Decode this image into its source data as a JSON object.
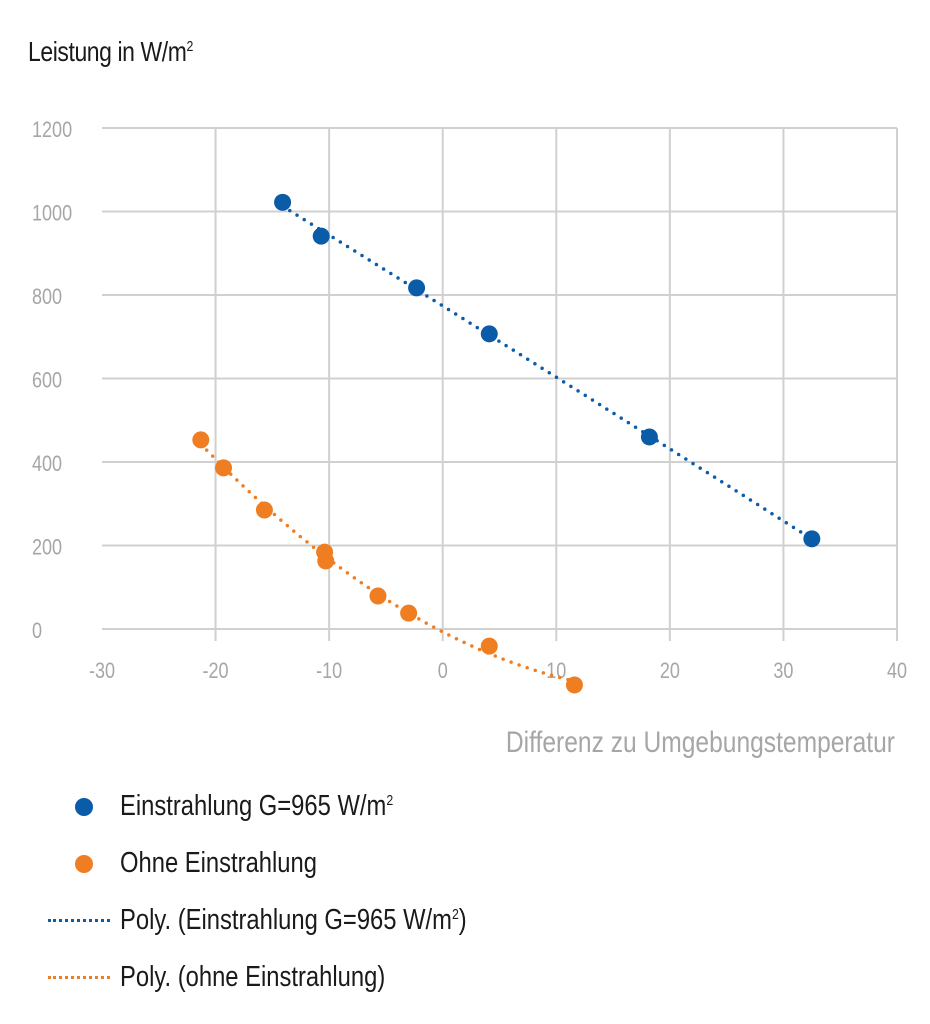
{
  "chart_data": {
    "type": "scatter",
    "title": "Leistung in W/m",
    "title_superscript": "2",
    "xlabel": "Differenz zu Umgebungstemperatur",
    "ylabel": "Leistung in W/m²",
    "xlim": [
      -30,
      40
    ],
    "ylim": [
      -120,
      1200
    ],
    "x_ticks": [
      -30,
      -20,
      -10,
      0,
      10,
      20,
      30,
      40
    ],
    "y_ticks": [
      0,
      200,
      400,
      600,
      800,
      1000,
      1200
    ],
    "grid": true,
    "legend_position": "bottom",
    "series": [
      {
        "name": "Einstrahlung G=965 W/m²",
        "legend_label": "Einstrahlung G=965 W/m",
        "legend_sup": "2",
        "color": "#0a5ba8",
        "marker": "circle",
        "x": [
          -14.1,
          -10.7,
          -2.3,
          4.1,
          18.2,
          32.5
        ],
        "y": [
          1022,
          941,
          817,
          707,
          460,
          216
        ]
      },
      {
        "name": "Ohne Einstrahlung",
        "legend_label": "Ohne Einstrahlung",
        "legend_sup": "",
        "color": "#ef7d22",
        "marker": "circle",
        "x": [
          -21.3,
          -19.3,
          -15.7,
          -10.4,
          -10.3,
          -5.7,
          -3.0,
          4.1,
          11.6
        ],
        "y": [
          453,
          386,
          285,
          184,
          163,
          79,
          38,
          -41,
          -134
        ]
      }
    ],
    "trendlines": [
      {
        "name": "Poly. (Einstrahlung G=965 W/m²)",
        "legend_label": "Poly. (Einstrahlung G=965 W/m",
        "legend_sup": "2",
        "legend_suffix": ")",
        "type": "polynomial",
        "of_series": 0,
        "color": "#0a5ba8",
        "style": "dotted"
      },
      {
        "name": "Poly. (ohne Einstrahlung)",
        "legend_label": "Poly. (ohne Einstrahlung)",
        "legend_sup": "",
        "legend_suffix": "",
        "type": "polynomial",
        "of_series": 1,
        "color": "#ef7d22",
        "style": "dotted"
      }
    ]
  }
}
